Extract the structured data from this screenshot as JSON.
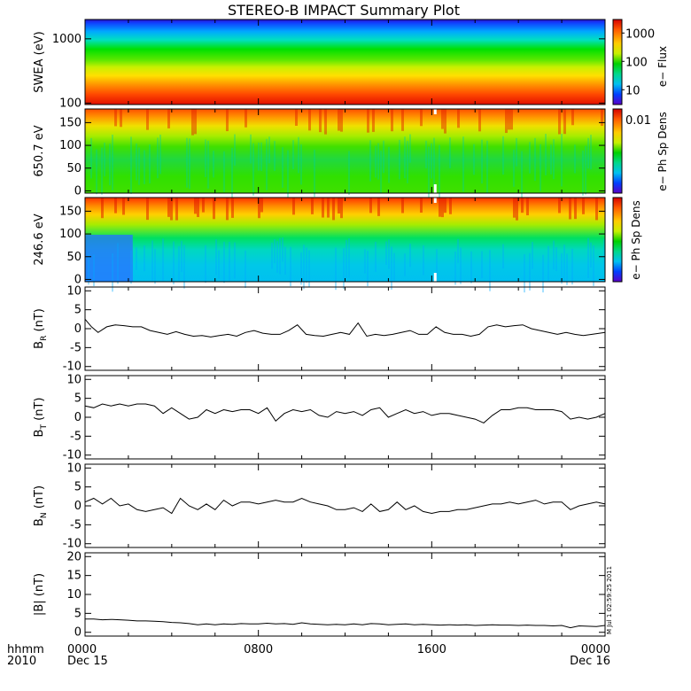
{
  "title": "STEREO-B IMPACT Summary Plot",
  "time_axis": {
    "row1_labels": [
      "hhmm",
      "0000",
      "0800",
      "1600",
      "0000"
    ],
    "row2_labels": [
      "2010",
      "Dec 15",
      "",
      "",
      "Dec 16"
    ],
    "range_hours": [
      0,
      24
    ],
    "major_ticks_hours": [
      0,
      8,
      16,
      24
    ]
  },
  "timestamp": "M Jul 1 02:59:25 2011",
  "chart_data": [
    {
      "type": "heatmap",
      "ylabel": "SWEA (eV)",
      "yscale": "log",
      "ylim": [
        95,
        2000
      ],
      "yticks": [
        100,
        1000
      ],
      "ytick_labels": [
        "100",
        "1000"
      ],
      "colorbar": {
        "label": "e− Flux",
        "scale": "log",
        "range": [
          3,
          3000
        ],
        "ticks": [
          10,
          100,
          1000
        ],
        "tick_labels": [
          "10",
          "100",
          "1000"
        ]
      },
      "description_values": "flux high (red) at ~100 eV, green ~300-700 eV, blue/violet above ~1500 eV; nearly constant in time"
    },
    {
      "type": "heatmap",
      "ylabel": "650.7 eV",
      "ylim": [
        -5,
        180
      ],
      "yticks": [
        0,
        50,
        100,
        150
      ],
      "colorbar": {
        "label": "e− Ph Sp Dens",
        "ticks": [
          0.01
        ],
        "tick_labels": [
          "0.01"
        ]
      },
      "gap_hours": [
        16.1,
        16.2
      ]
    },
    {
      "type": "heatmap",
      "ylabel": "246.6 eV",
      "ylim": [
        -5,
        180
      ],
      "yticks": [
        0,
        50,
        100,
        150
      ],
      "colorbar": {
        "label": "e− Ph Sp Dens",
        "ticks": [],
        "tick_labels": []
      },
      "gap_hours": [
        16.1,
        16.2
      ]
    },
    {
      "type": "line",
      "ylabel_main": "B",
      "ylabel_sub": "R",
      "ylabel_unit": " (nT)",
      "ylim": [
        -11,
        11
      ],
      "yticks": [
        -10,
        -5,
        0,
        5,
        10
      ],
      "x": [
        0,
        0.3,
        0.6,
        1.0,
        1.4,
        1.8,
        2.2,
        2.6,
        3.0,
        3.4,
        3.8,
        4.2,
        4.6,
        5.0,
        5.4,
        5.8,
        6.2,
        6.6,
        7.0,
        7.4,
        7.8,
        8.2,
        8.6,
        9.0,
        9.4,
        9.8,
        10.2,
        10.6,
        11.0,
        11.4,
        11.8,
        12.2,
        12.6,
        13.0,
        13.4,
        13.8,
        14.2,
        14.6,
        15.0,
        15.4,
        15.8,
        16.2,
        16.6,
        17.0,
        17.4,
        17.8,
        18.2,
        18.6,
        19.0,
        19.4,
        19.8,
        20.2,
        20.6,
        21.0,
        21.4,
        21.8,
        22.2,
        22.6,
        23.0,
        23.4,
        24.0
      ],
      "values": [
        2.5,
        0.5,
        -1.0,
        0.5,
        1.0,
        0.8,
        0.5,
        0.5,
        -0.5,
        -1.0,
        -1.5,
        -0.8,
        -1.5,
        -2.0,
        -1.8,
        -2.2,
        -1.8,
        -1.5,
        -2.0,
        -1.0,
        -0.5,
        -1.2,
        -1.5,
        -1.5,
        -0.5,
        1.0,
        -1.5,
        -1.8,
        -2.0,
        -1.5,
        -1.0,
        -1.5,
        1.5,
        -2.0,
        -1.5,
        -1.8,
        -1.5,
        -1.0,
        -0.5,
        -1.5,
        -1.5,
        0.5,
        -1.0,
        -1.5,
        -1.5,
        -2.0,
        -1.5,
        0.5,
        1.0,
        0.5,
        0.8,
        1.0,
        0.0,
        -0.5,
        -1.0,
        -1.5,
        -1.0,
        -1.5,
        -1.8,
        -1.5,
        -1.0
      ]
    },
    {
      "type": "line",
      "ylabel_main": "B",
      "ylabel_sub": "T",
      "ylabel_unit": " (nT)",
      "ylim": [
        -11,
        11
      ],
      "yticks": [
        -10,
        -5,
        0,
        5,
        10
      ],
      "x": [
        0,
        0.4,
        0.8,
        1.2,
        1.6,
        2.0,
        2.4,
        2.8,
        3.2,
        3.6,
        4.0,
        4.4,
        4.8,
        5.2,
        5.6,
        6.0,
        6.4,
        6.8,
        7.2,
        7.6,
        8.0,
        8.4,
        8.8,
        9.2,
        9.6,
        10.0,
        10.4,
        10.8,
        11.2,
        11.6,
        12.0,
        12.4,
        12.8,
        13.2,
        13.6,
        14.0,
        14.4,
        14.8,
        15.2,
        15.6,
        16.0,
        16.4,
        16.8,
        17.2,
        17.6,
        18.0,
        18.4,
        18.8,
        19.2,
        19.6,
        20.0,
        20.4,
        20.8,
        21.2,
        21.6,
        22.0,
        22.4,
        22.8,
        23.2,
        23.6,
        24.0
      ],
      "values": [
        3.0,
        2.5,
        3.5,
        3.0,
        3.5,
        3.0,
        3.5,
        3.5,
        3.0,
        1.0,
        2.5,
        1.0,
        -0.5,
        0.0,
        2.0,
        1.0,
        2.0,
        1.5,
        2.0,
        2.0,
        1.0,
        2.5,
        -1.0,
        1.0,
        2.0,
        1.5,
        2.0,
        0.5,
        0.0,
        1.5,
        1.0,
        1.5,
        0.5,
        2.0,
        2.5,
        0.0,
        1.0,
        2.0,
        1.0,
        1.5,
        0.5,
        1.0,
        1.0,
        0.5,
        0.0,
        -0.5,
        -1.5,
        0.5,
        2.0,
        2.0,
        2.5,
        2.5,
        2.0,
        2.0,
        2.0,
        1.5,
        -0.5,
        0.0,
        -0.5,
        0.0,
        1.0
      ]
    },
    {
      "type": "line",
      "ylabel_main": "B",
      "ylabel_sub": "N",
      "ylabel_unit": " (nT)",
      "ylim": [
        -11,
        11
      ],
      "yticks": [
        -10,
        -5,
        0,
        5,
        10
      ],
      "x": [
        0,
        0.4,
        0.8,
        1.2,
        1.6,
        2.0,
        2.4,
        2.8,
        3.2,
        3.6,
        4.0,
        4.4,
        4.8,
        5.2,
        5.6,
        6.0,
        6.4,
        6.8,
        7.2,
        7.6,
        8.0,
        8.4,
        8.8,
        9.2,
        9.6,
        10.0,
        10.4,
        10.8,
        11.2,
        11.6,
        12.0,
        12.4,
        12.8,
        13.2,
        13.6,
        14.0,
        14.4,
        14.8,
        15.2,
        15.6,
        16.0,
        16.4,
        16.8,
        17.2,
        17.6,
        18.0,
        18.4,
        18.8,
        19.2,
        19.6,
        20.0,
        20.4,
        20.8,
        21.2,
        21.6,
        22.0,
        22.4,
        22.8,
        23.2,
        23.6,
        24.0
      ],
      "values": [
        1.0,
        2.0,
        0.5,
        2.0,
        0.0,
        0.5,
        -1.0,
        -1.5,
        -1.0,
        -0.5,
        -2.0,
        2.0,
        0.0,
        -1.0,
        0.5,
        -1.0,
        1.5,
        0.0,
        1.0,
        1.0,
        0.5,
        1.0,
        1.5,
        1.0,
        1.0,
        2.0,
        1.0,
        0.5,
        0.0,
        -1.0,
        -1.0,
        -0.5,
        -1.5,
        0.5,
        -1.5,
        -1.0,
        1.0,
        -1.0,
        0.0,
        -1.5,
        -2.0,
        -1.5,
        -1.5,
        -1.0,
        -1.0,
        -0.5,
        0.0,
        0.5,
        0.5,
        1.0,
        0.5,
        1.0,
        1.5,
        0.5,
        1.0,
        1.0,
        -1.0,
        0.0,
        0.5,
        1.0,
        0.5
      ]
    },
    {
      "type": "line",
      "ylabel": "|B| (nT)",
      "ylim": [
        -1,
        21
      ],
      "yticks": [
        0,
        5,
        10,
        15,
        20
      ],
      "x": [
        0,
        0.4,
        0.8,
        1.2,
        1.6,
        2.0,
        2.4,
        2.8,
        3.2,
        3.6,
        4.0,
        4.4,
        4.8,
        5.2,
        5.6,
        6.0,
        6.4,
        6.8,
        7.2,
        7.6,
        8.0,
        8.4,
        8.8,
        9.2,
        9.6,
        10.0,
        10.4,
        10.8,
        11.2,
        11.6,
        12.0,
        12.4,
        12.8,
        13.2,
        13.6,
        14.0,
        14.4,
        14.8,
        15.2,
        15.6,
        16.0,
        16.4,
        16.8,
        17.2,
        17.6,
        18.0,
        18.4,
        18.8,
        19.2,
        19.6,
        20.0,
        20.4,
        20.8,
        21.2,
        21.6,
        22.0,
        22.4,
        22.8,
        23.2,
        23.6,
        24.0
      ],
      "values": [
        3.5,
        3.5,
        3.3,
        3.4,
        3.3,
        3.2,
        3.0,
        3.0,
        2.9,
        2.8,
        2.6,
        2.5,
        2.3,
        2.0,
        2.2,
        2.0,
        2.2,
        2.1,
        2.3,
        2.2,
        2.2,
        2.4,
        2.2,
        2.3,
        2.1,
        2.5,
        2.2,
        2.1,
        2.0,
        2.1,
        2.0,
        2.2,
        2.0,
        2.3,
        2.2,
        2.0,
        2.1,
        2.2,
        2.0,
        2.1,
        2.0,
        1.9,
        2.0,
        1.9,
        2.0,
        1.8,
        1.9,
        2.0,
        1.9,
        1.9,
        1.8,
        1.9,
        1.8,
        1.8,
        1.7,
        1.8,
        1.2,
        1.7,
        1.6,
        1.5,
        1.8
      ]
    }
  ]
}
